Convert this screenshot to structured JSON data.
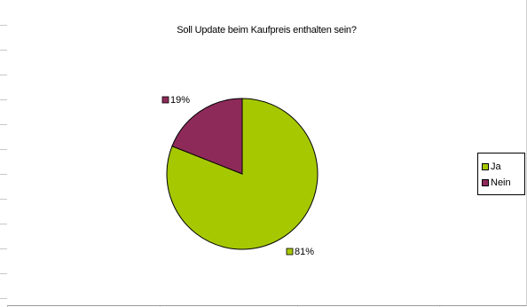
{
  "chart_data": {
    "type": "pie",
    "title": "Soll Update beim Kaufpreis enthalten sein?",
    "categories": [
      "Ja",
      "Nein"
    ],
    "values": [
      81,
      19
    ],
    "data_labels": [
      "81%",
      "19%"
    ],
    "colors": [
      "#a6c800",
      "#8e2a5a"
    ],
    "legend_position": "right"
  }
}
